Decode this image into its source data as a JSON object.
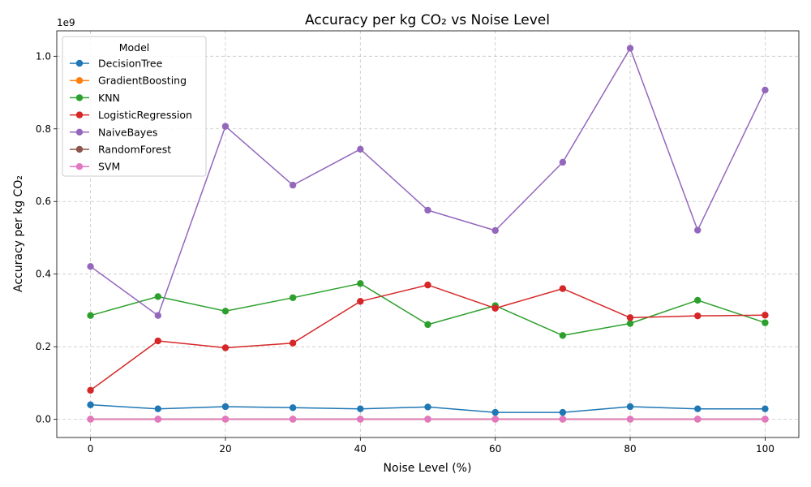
{
  "chart_data": {
    "type": "line",
    "title": "Accuracy per kg CO₂ vs Noise Level",
    "xlabel": "Noise Level (%)",
    "ylabel": "Accuracy per kg CO₂",
    "y_multiplier_label": "1e9",
    "xlim": [
      -5,
      105
    ],
    "ylim": [
      -0.05,
      1.07
    ],
    "x_ticks": [
      "0",
      "20",
      "40",
      "60",
      "80",
      "100"
    ],
    "y_ticks": [
      "0.0",
      "0.2",
      "0.4",
      "0.6",
      "0.8",
      "1.0"
    ],
    "x_tick_values": [
      0,
      20,
      40,
      60,
      80,
      100
    ],
    "y_tick_values": [
      0.0,
      0.2,
      0.4,
      0.6,
      0.8,
      1.0
    ],
    "grid": true,
    "legend_title": "Model",
    "legend_position": "top-left",
    "x": [
      0,
      10,
      20,
      30,
      40,
      50,
      60,
      70,
      80,
      90,
      100
    ],
    "series": [
      {
        "name": "DecisionTree",
        "color": "#1f77b4",
        "values": [
          0.04,
          0.029,
          0.035,
          0.032,
          0.029,
          0.034,
          0.019,
          0.019,
          0.035,
          0.029,
          0.029
        ]
      },
      {
        "name": "GradientBoosting",
        "color": "#ff7f0e",
        "values": [
          0.0003,
          0.0003,
          0.0003,
          0.0003,
          0.0003,
          0.0003,
          0.0003,
          0.0003,
          0.0003,
          0.0003,
          0.0003
        ]
      },
      {
        "name": "KNN",
        "color": "#2ca02c",
        "values": [
          0.286,
          0.338,
          0.298,
          0.335,
          0.374,
          0.261,
          0.313,
          0.231,
          0.264,
          0.328,
          0.266
        ]
      },
      {
        "name": "LogisticRegression",
        "color": "#d62728",
        "values": [
          0.08,
          0.216,
          0.197,
          0.21,
          0.325,
          0.37,
          0.306,
          0.36,
          0.28,
          0.285,
          0.287
        ]
      },
      {
        "name": "NaiveBayes",
        "color": "#9467bd",
        "values": [
          0.421,
          0.286,
          0.807,
          0.645,
          0.744,
          0.576,
          0.52,
          0.708,
          1.022,
          0.521,
          0.907
        ]
      },
      {
        "name": "RandomForest",
        "color": "#8c564b",
        "values": [
          0.0005,
          0.0005,
          0.0005,
          0.0005,
          0.0005,
          0.0005,
          0.0005,
          0.0005,
          0.0005,
          0.0005,
          0.0005
        ]
      },
      {
        "name": "SVM",
        "color": "#e377c2",
        "values": [
          0.0004,
          0.0004,
          0.0004,
          0.0004,
          0.0004,
          0.0004,
          0.0004,
          0.0004,
          0.0004,
          0.0004,
          0.0004
        ]
      }
    ]
  }
}
